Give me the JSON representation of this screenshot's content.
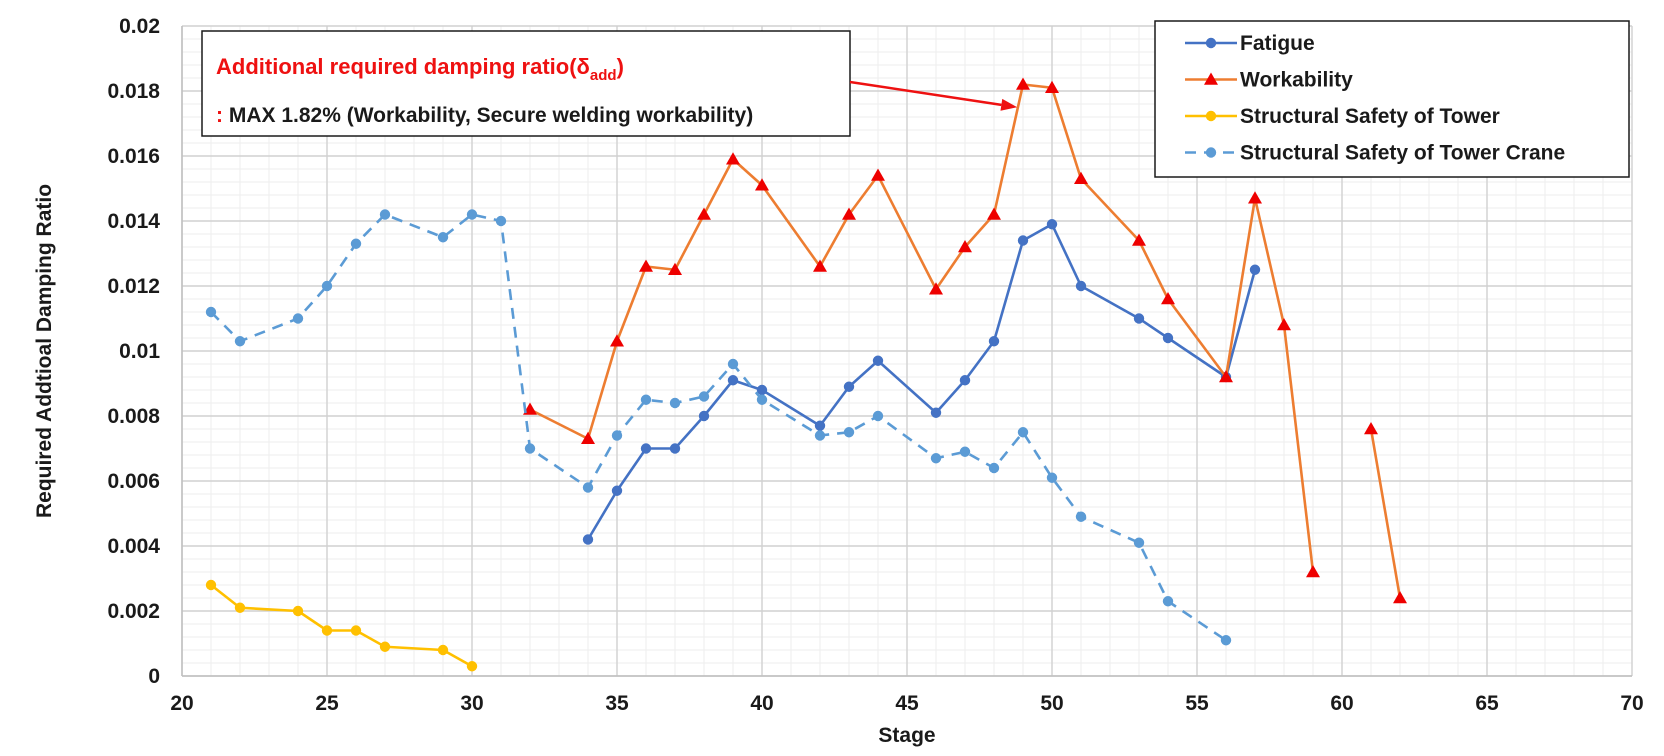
{
  "chart_data": {
    "type": "line",
    "title": "",
    "xlabel": "Stage",
    "ylabel": "Required Addtioal Damping Ratio",
    "xlim": [
      20,
      70
    ],
    "ylim": [
      0,
      0.02
    ],
    "x_ticks": [
      "20",
      "25",
      "30",
      "35",
      "40",
      "45",
      "50",
      "55",
      "60",
      "65",
      "70"
    ],
    "y_ticks": [
      "0",
      "0.002",
      "0.004",
      "0.006",
      "0.008",
      "0.01",
      "0.012",
      "0.014",
      "0.016",
      "0.018",
      "0.02"
    ],
    "grid": true,
    "legend_position": "top-right",
    "series": [
      {
        "name": "Fatigue",
        "color": "#4472c4",
        "marker": "circle",
        "dash": "solid",
        "segments": [
          [
            [
              34,
              0.0042
            ],
            [
              35,
              0.0057
            ],
            [
              36,
              0.007
            ],
            [
              37,
              0.007
            ],
            [
              38,
              0.008
            ],
            [
              39,
              0.0091
            ],
            [
              40,
              0.0088
            ],
            [
              42,
              0.0077
            ],
            [
              43,
              0.0089
            ],
            [
              44,
              0.0097
            ],
            [
              46,
              0.0081
            ],
            [
              47,
              0.0091
            ],
            [
              48,
              0.0103
            ],
            [
              49,
              0.0134
            ],
            [
              50,
              0.0139
            ],
            [
              51,
              0.012
            ],
            [
              53,
              0.011
            ],
            [
              54,
              0.0104
            ],
            [
              56,
              0.0092
            ],
            [
              57,
              0.0125
            ]
          ]
        ]
      },
      {
        "name": "Workability",
        "color": "#ed7d31",
        "marker": "triangle",
        "marker_color": "#ee0000",
        "dash": "solid",
        "segments": [
          [
            [
              32,
              0.0082
            ],
            [
              34,
              0.0073
            ],
            [
              35,
              0.0103
            ],
            [
              36,
              0.0126
            ],
            [
              37,
              0.0125
            ],
            [
              38,
              0.0142
            ],
            [
              39,
              0.0159
            ],
            [
              40,
              0.0151
            ],
            [
              42,
              0.0126
            ],
            [
              43,
              0.0142
            ],
            [
              44,
              0.0154
            ],
            [
              46,
              0.0119
            ],
            [
              47,
              0.0132
            ],
            [
              48,
              0.0142
            ],
            [
              49,
              0.0182
            ],
            [
              50,
              0.0181
            ],
            [
              51,
              0.0153
            ],
            [
              53,
              0.0134
            ],
            [
              54,
              0.0116
            ],
            [
              56,
              0.0092
            ],
            [
              57,
              0.0147
            ],
            [
              58,
              0.0108
            ],
            [
              59,
              0.0032
            ]
          ],
          [
            [
              61,
              0.0076
            ],
            [
              62,
              0.0024
            ]
          ]
        ]
      },
      {
        "name": "Structural Safety of Tower",
        "color": "#ffc000",
        "marker": "circle",
        "dash": "solid",
        "segments": [
          [
            [
              21,
              0.0028
            ],
            [
              22,
              0.0021
            ],
            [
              24,
              0.002
            ],
            [
              25,
              0.0014
            ],
            [
              26,
              0.0014
            ],
            [
              27,
              0.0009
            ],
            [
              29,
              0.0008
            ],
            [
              30,
              0.0003
            ]
          ]
        ]
      },
      {
        "name": "Structural Safety of Tower Crane",
        "color": "#5b9bd5",
        "marker": "circle",
        "dash": "dashed",
        "segments": [
          [
            [
              21,
              0.0112
            ],
            [
              22,
              0.0103
            ],
            [
              24,
              0.011
            ],
            [
              25,
              0.012
            ],
            [
              26,
              0.0133
            ],
            [
              27,
              0.0142
            ],
            [
              29,
              0.0135
            ],
            [
              30,
              0.0142
            ],
            [
              31,
              0.014
            ],
            [
              32,
              0.007
            ],
            [
              34,
              0.0058
            ],
            [
              35,
              0.0074
            ],
            [
              36,
              0.0085
            ],
            [
              37,
              0.0084
            ],
            [
              38,
              0.0086
            ],
            [
              39,
              0.0096
            ],
            [
              40,
              0.0085
            ],
            [
              42,
              0.0074
            ],
            [
              43,
              0.0075
            ],
            [
              44,
              0.008
            ],
            [
              46,
              0.0067
            ],
            [
              47,
              0.0069
            ],
            [
              48,
              0.0064
            ],
            [
              49,
              0.0075
            ],
            [
              50,
              0.0061
            ],
            [
              51,
              0.0049
            ],
            [
              53,
              0.0041
            ],
            [
              54,
              0.0023
            ],
            [
              56,
              0.0011
            ]
          ]
        ]
      }
    ],
    "annotation": {
      "title_prefix": "Additional required damping ratio(δ",
      "title_sub": "add",
      "title_suffix": ")",
      "line_prefix": ":",
      "line_text": " MAX 1.82% (Workability, Secure welding workability)",
      "arrow_target": [
        48.8,
        0.0175
      ],
      "arrow_color": "#ee1111"
    }
  }
}
